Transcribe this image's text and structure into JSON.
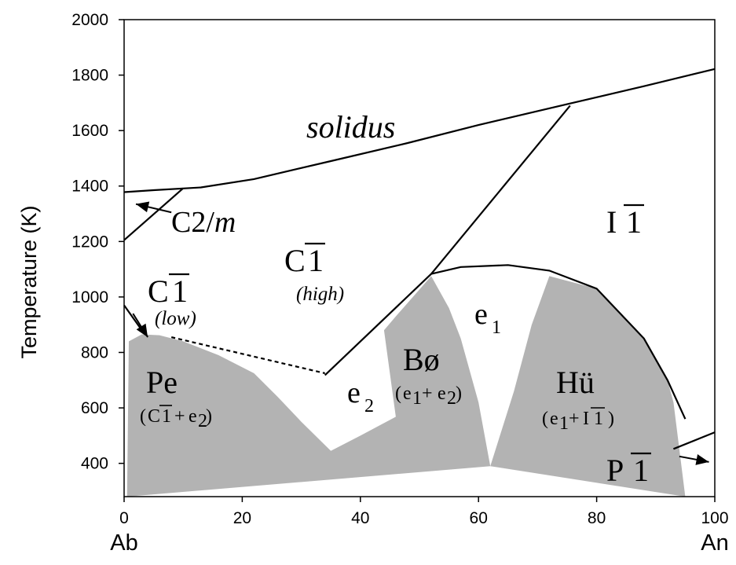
{
  "chart_data": {
    "type": "area",
    "title": "",
    "xlabel": "",
    "ylabel": "Temperature (K)",
    "xlim": [
      0,
      100
    ],
    "ylim": [
      280,
      2000
    ],
    "x_ticks": [
      "0",
      "20",
      "40",
      "60",
      "80",
      "100"
    ],
    "y_ticks": [
      "400",
      "600",
      "800",
      "1000",
      "1200",
      "1400",
      "1600",
      "1800",
      "2000"
    ],
    "x_end_labels": {
      "left": "Ab",
      "right": "An"
    },
    "grid": false,
    "curves": {
      "solidus": [
        [
          0,
          1378
        ],
        [
          5,
          1385
        ],
        [
          13,
          1395
        ],
        [
          22,
          1425
        ],
        [
          35,
          1490
        ],
        [
          48,
          1555
        ],
        [
          60,
          1620
        ],
        [
          75,
          1695
        ],
        [
          88,
          1760
        ],
        [
          100,
          1822
        ]
      ],
      "c2m_transition": [
        [
          0,
          1205
        ],
        [
          10,
          1392
        ]
      ],
      "bold_transition": [
        [
          52,
          1083
        ],
        [
          75.5,
          1690
        ]
      ],
      "e1_dome": [
        [
          52,
          1083
        ],
        [
          57,
          1108
        ],
        [
          65,
          1115
        ],
        [
          72,
          1095
        ],
        [
          80,
          1030
        ],
        [
          88,
          850
        ],
        [
          92,
          700
        ],
        [
          95,
          560
        ]
      ],
      "c1_e2_boundary": [
        [
          34,
          718
        ],
        [
          52,
          1083
        ]
      ],
      "p1_transition": [
        [
          93,
          452
        ],
        [
          100,
          512
        ]
      ],
      "low_c1_boundary": [
        [
          0,
          970
        ],
        [
          3,
          880
        ]
      ],
      "dashed_c1_low": [
        [
          8,
          855
        ],
        [
          34,
          725
        ]
      ],
      "c2m_arrow": [
        [
          8,
          1305
        ],
        [
          2,
          1335
        ]
      ],
      "c1_low_arrow": [
        [
          1.5,
          940
        ],
        [
          4,
          855
        ]
      ],
      "p1_arrow": [
        [
          94,
          425
        ],
        [
          99,
          405
        ]
      ]
    },
    "shaded_regions": [
      {
        "name": "Pe",
        "polygon": [
          [
            0.5,
            280
          ],
          [
            0.8,
            840
          ],
          [
            3,
            865
          ],
          [
            6,
            862
          ],
          [
            10,
            840
          ],
          [
            16,
            790
          ],
          [
            22,
            725
          ],
          [
            26,
            640
          ],
          [
            30,
            550
          ],
          [
            35,
            445
          ],
          [
            40,
            500
          ],
          [
            46,
            568
          ],
          [
            44,
            880
          ],
          [
            46,
            930
          ],
          [
            52,
            1075
          ],
          [
            55,
            960
          ],
          [
            57,
            850
          ],
          [
            60,
            620
          ],
          [
            62,
            390
          ]
        ]
      },
      {
        "name": "Hü",
        "polygon": [
          [
            62,
            390
          ],
          [
            66,
            660
          ],
          [
            69,
            900
          ],
          [
            72,
            1075
          ],
          [
            80,
            1030
          ],
          [
            88,
            850
          ],
          [
            92,
            700
          ],
          [
            93,
            620
          ],
          [
            95,
            280
          ]
        ]
      }
    ],
    "annotations": [
      {
        "id": "solidus",
        "text": "solidus",
        "x": 31.5,
        "y": 1580
      },
      {
        "id": "c2m",
        "text": "C2/m",
        "x": 8,
        "y": 1285
      },
      {
        "id": "c1_high",
        "text": "C1",
        "x": 28,
        "y": 1105
      },
      {
        "id": "c1_high_sub",
        "text": "(high)",
        "x": 29.5,
        "y": 985
      },
      {
        "id": "c1_low",
        "text": "C1",
        "x": 4,
        "y": 990
      },
      {
        "id": "c1_low_sub",
        "text": "(low)",
        "x": 6,
        "y": 895
      },
      {
        "id": "i1",
        "text": "I1",
        "x": 82,
        "y": 1275
      },
      {
        "id": "e1",
        "text": "e1",
        "x": 60,
        "y": 895
      },
      {
        "id": "e2",
        "text": "e2",
        "x": 38.5,
        "y": 600
      },
      {
        "id": "pe",
        "text": "Pe",
        "x": 4,
        "y": 715
      },
      {
        "id": "pe_comp",
        "text": "(C1+e2)",
        "x": 3,
        "y": 615
      },
      {
        "id": "bo",
        "text": "Bø",
        "x": 47,
        "y": 750
      },
      {
        "id": "bo_comp",
        "text": "(e1+e2)",
        "x": 46,
        "y": 650
      },
      {
        "id": "hu",
        "text": "Hü",
        "x": 73.5,
        "y": 700
      },
      {
        "id": "hu_comp",
        "text": "(e1+I1)",
        "x": 71,
        "y": 600
      },
      {
        "id": "p1",
        "text": "P1",
        "x": 81,
        "y": 370
      }
    ]
  },
  "labels": {
    "ylabel": "Temperature (K)",
    "solidus": "solidus",
    "c2m": "C2/",
    "c2m_m": "m",
    "c1_letter": "C",
    "bar_one": "1",
    "high": "(high)",
    "low": "(low)",
    "i_letter": "I",
    "e_letter": "e",
    "sub_1": "1",
    "sub_2": "2",
    "pe": "Pe",
    "bo": "Bø",
    "hu": "Hü",
    "p_letter": "P",
    "open_paren": "(",
    "close_paren": ")",
    "plus": "+",
    "ab": "Ab",
    "an": "An"
  },
  "colors": {
    "shade": "#b3b3b3",
    "line": "#000000"
  }
}
